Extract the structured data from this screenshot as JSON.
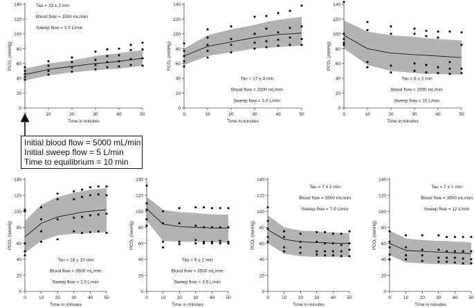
{
  "chart_data": [
    {
      "type": "line",
      "x": [
        0,
        10,
        20,
        30,
        35,
        40,
        45,
        50
      ],
      "median": [
        45,
        52,
        56,
        60,
        61,
        63,
        65,
        67
      ],
      "band_low": [
        37,
        44,
        48,
        51,
        52,
        53,
        55,
        57
      ],
      "band_high": [
        53,
        60,
        64,
        70,
        72,
        74,
        76,
        78
      ],
      "points": [
        [
          0,
          38
        ],
        [
          0,
          42
        ],
        [
          0,
          46
        ],
        [
          0,
          50
        ],
        [
          0,
          55
        ],
        [
          10,
          45
        ],
        [
          10,
          50
        ],
        [
          10,
          57
        ],
        [
          10,
          63
        ],
        [
          20,
          49
        ],
        [
          20,
          55
        ],
        [
          20,
          62
        ],
        [
          20,
          68
        ],
        [
          30,
          52
        ],
        [
          30,
          58
        ],
        [
          30,
          65
        ],
        [
          30,
          76
        ],
        [
          35,
          55
        ],
        [
          35,
          62
        ],
        [
          35,
          70
        ],
        [
          35,
          79
        ],
        [
          40,
          56
        ],
        [
          40,
          63
        ],
        [
          40,
          71
        ],
        [
          40,
          80
        ],
        [
          45,
          58
        ],
        [
          45,
          66
        ],
        [
          45,
          78
        ],
        [
          45,
          85
        ],
        [
          50,
          57
        ],
        [
          50,
          67
        ],
        [
          50,
          79
        ],
        [
          50,
          88
        ]
      ],
      "ylabel": "PCO₂ (mmHg)",
      "xlabel": "Time in minutes",
      "xticks": [
        "0",
        "10",
        "20",
        "30",
        "40",
        "50"
      ],
      "yticks": [
        "0",
        "20",
        "40",
        "60",
        "80",
        "100",
        "120",
        "140"
      ],
      "ylim": [
        0,
        140
      ],
      "xlim": [
        0,
        50
      ],
      "annotations": [
        "Tau =  33 ± 3  min",
        "Blood flow = 1500 mL/min",
        "Sweep flow = 3.0 L/min"
      ],
      "annotation_anchor": "top-left"
    },
    {
      "type": "line",
      "x": [
        0,
        10,
        20,
        30,
        35,
        40,
        45,
        50
      ],
      "median": [
        70,
        83,
        89,
        95,
        97,
        99,
        100,
        101
      ],
      "band_low": [
        58,
        70,
        75,
        80,
        81,
        82,
        83,
        84
      ],
      "band_high": [
        80,
        98,
        106,
        112,
        116,
        119,
        121,
        123
      ],
      "points": [
        [
          0,
          56
        ],
        [
          0,
          63
        ],
        [
          0,
          70
        ],
        [
          0,
          77
        ],
        [
          0,
          87
        ],
        [
          10,
          68
        ],
        [
          10,
          77
        ],
        [
          10,
          85
        ],
        [
          10,
          95
        ],
        [
          10,
          106
        ],
        [
          20,
          75
        ],
        [
          20,
          85
        ],
        [
          20,
          93
        ],
        [
          20,
          110
        ],
        [
          30,
          80
        ],
        [
          30,
          88
        ],
        [
          30,
          100
        ],
        [
          30,
          123
        ],
        [
          35,
          82
        ],
        [
          35,
          90
        ],
        [
          35,
          107
        ],
        [
          35,
          124
        ],
        [
          40,
          84
        ],
        [
          40,
          92
        ],
        [
          40,
          102
        ],
        [
          40,
          128
        ],
        [
          45,
          85
        ],
        [
          45,
          95
        ],
        [
          45,
          108
        ],
        [
          45,
          131
        ],
        [
          50,
          85
        ],
        [
          50,
          93
        ],
        [
          50,
          110
        ],
        [
          50,
          138
        ]
      ],
      "ylabel": "PCO₂ (mmHg)",
      "xlabel": "Time in minutes",
      "xticks": [
        "0",
        "10",
        "20",
        "30",
        "40",
        "50"
      ],
      "yticks": [
        "0",
        "20",
        "40",
        "60",
        "80",
        "100",
        "120",
        "140"
      ],
      "ylim": [
        0,
        140
      ],
      "xlim": [
        0,
        50
      ],
      "annotations": [
        "Tau =  17 ± 4  min",
        "Blood flow = 1500 mL/min",
        "Sweep flow = 3.0 L/min"
      ],
      "annotation_anchor": "bottom-right"
    },
    {
      "type": "line",
      "x": [
        0,
        10,
        20,
        30,
        35,
        40,
        45,
        50
      ],
      "median": [
        98,
        80,
        74,
        72,
        71,
        70,
        69,
        68
      ],
      "band_low": [
        80,
        58,
        50,
        47,
        46,
        46,
        45,
        45
      ],
      "band_high": [
        118,
        103,
        98,
        96,
        94,
        93,
        92,
        91
      ],
      "points": [
        [
          0,
          143
        ],
        [
          0,
          100
        ],
        [
          0,
          93
        ],
        [
          0,
          88
        ],
        [
          0,
          85
        ],
        [
          10,
          116
        ],
        [
          10,
          105
        ],
        [
          10,
          62
        ],
        [
          10,
          55
        ],
        [
          20,
          110
        ],
        [
          20,
          100
        ],
        [
          20,
          57
        ],
        [
          20,
          48
        ],
        [
          30,
          107
        ],
        [
          30,
          100
        ],
        [
          30,
          60
        ],
        [
          30,
          50
        ],
        [
          35,
          104
        ],
        [
          35,
          97
        ],
        [
          35,
          58
        ],
        [
          35,
          48
        ],
        [
          40,
          103
        ],
        [
          40,
          95
        ],
        [
          40,
          55
        ],
        [
          40,
          47
        ],
        [
          45,
          103
        ],
        [
          45,
          62
        ],
        [
          45,
          53
        ],
        [
          45,
          46
        ],
        [
          50,
          102
        ],
        [
          50,
          85
        ],
        [
          50,
          53
        ],
        [
          50,
          47
        ]
      ],
      "ylabel": "PCO₂ (mmHg)",
      "xlabel": "Time in minutes",
      "xticks": [
        "0",
        "10",
        "20",
        "30",
        "40",
        "50"
      ],
      "yticks": [
        "0",
        "20",
        "40",
        "60",
        "80",
        "100",
        "120",
        "140"
      ],
      "ylim": [
        0,
        140
      ],
      "xlim": [
        0,
        50
      ],
      "annotations": [
        "Tau =  8 ± 2  min",
        "Blood flow = 1500 mL/min",
        "Sweep flow = 10 L/min"
      ],
      "annotation_anchor": "bottom-right"
    },
    {
      "type": "line",
      "x": [
        0,
        10,
        20,
        30,
        35,
        40,
        45,
        50
      ],
      "median": [
        68,
        85,
        93,
        97,
        99,
        100,
        101,
        102
      ],
      "band_low": [
        48,
        63,
        70,
        72,
        72,
        73,
        73,
        74
      ],
      "band_high": [
        88,
        108,
        118,
        123,
        125,
        127,
        128,
        129
      ],
      "points": [
        [
          0,
          45
        ],
        [
          0,
          50
        ],
        [
          0,
          60
        ],
        [
          0,
          100
        ],
        [
          0,
          102
        ],
        [
          10,
          62
        ],
        [
          10,
          75
        ],
        [
          10,
          90
        ],
        [
          10,
          105
        ],
        [
          20,
          65
        ],
        [
          20,
          90
        ],
        [
          20,
          115
        ],
        [
          20,
          122
        ],
        [
          30,
          75
        ],
        [
          30,
          92
        ],
        [
          30,
          115
        ],
        [
          30,
          125
        ],
        [
          35,
          73
        ],
        [
          35,
          93
        ],
        [
          35,
          118
        ],
        [
          35,
          127
        ],
        [
          40,
          74
        ],
        [
          40,
          95
        ],
        [
          40,
          120
        ],
        [
          40,
          130
        ],
        [
          45,
          75
        ],
        [
          45,
          96
        ],
        [
          45,
          121
        ],
        [
          45,
          131
        ],
        [
          50,
          73
        ],
        [
          50,
          97
        ],
        [
          50,
          120
        ],
        [
          50,
          131
        ]
      ],
      "ylabel": "PCO₂ (mmHg)",
      "xlabel": "Time in minutes",
      "xticks": [
        "0",
        "10",
        "20",
        "30",
        "40",
        "50"
      ],
      "yticks": [
        "0",
        "20",
        "40",
        "60",
        "80",
        "100",
        "120",
        "140"
      ],
      "ylim": [
        0,
        140
      ],
      "xlim": [
        0,
        50
      ],
      "annotations": [
        "Tau =  18 ± 10  min",
        "Blood flow = 3500 mL/min",
        "Sweep flow = 2.0 L/min"
      ],
      "annotation_anchor": "bottom-right"
    },
    {
      "type": "line",
      "x": [
        0,
        10,
        20,
        30,
        35,
        40,
        45,
        50
      ],
      "median": [
        103,
        84,
        81,
        80,
        80,
        79,
        79,
        79
      ],
      "band_low": [
        88,
        63,
        62,
        62,
        62,
        61,
        61,
        61
      ],
      "band_high": [
        118,
        102,
        99,
        98,
        97,
        96,
        96,
        96
      ],
      "points": [
        [
          0,
          132
        ],
        [
          0,
          110
        ],
        [
          0,
          102
        ],
        [
          0,
          90
        ],
        [
          0,
          82
        ],
        [
          10,
          100
        ],
        [
          10,
          85
        ],
        [
          10,
          62
        ],
        [
          10,
          55
        ],
        [
          20,
          104
        ],
        [
          20,
          85
        ],
        [
          20,
          62
        ],
        [
          20,
          59
        ],
        [
          30,
          105
        ],
        [
          30,
          82
        ],
        [
          30,
          64
        ],
        [
          30,
          60
        ],
        [
          35,
          105
        ],
        [
          35,
          80
        ],
        [
          35,
          62
        ],
        [
          35,
          60
        ],
        [
          40,
          104
        ],
        [
          40,
          80
        ],
        [
          40,
          62
        ],
        [
          40,
          60
        ],
        [
          45,
          104
        ],
        [
          45,
          80
        ],
        [
          45,
          63
        ],
        [
          45,
          60
        ],
        [
          50,
          104
        ],
        [
          50,
          80
        ],
        [
          50,
          62
        ],
        [
          50,
          60
        ]
      ],
      "ylabel": "PCO₂ (mmHg)",
      "xlabel": "Time in minutes",
      "xticks": [
        "0",
        "10",
        "20",
        "30",
        "40",
        "50"
      ],
      "yticks": [
        "0",
        "20",
        "40",
        "60",
        "80",
        "100",
        "120",
        "140"
      ],
      "ylim": [
        0,
        140
      ],
      "xlim": [
        0,
        50
      ],
      "annotations": [
        "Tau =  5 ± 2  min",
        "Blood flow = 3500 mL/min",
        "Sweep flow = 3.5 L/min"
      ],
      "annotation_anchor": "bottom-right"
    },
    {
      "type": "line",
      "x": [
        0,
        10,
        20,
        30,
        35,
        40,
        45,
        50
      ],
      "median": [
        77,
        65,
        62,
        61,
        61,
        60,
        60,
        60
      ],
      "band_low": [
        60,
        47,
        44,
        43,
        43,
        43,
        43,
        43
      ],
      "band_high": [
        95,
        80,
        76,
        75,
        74,
        74,
        73,
        73
      ],
      "points": [
        [
          0,
          105
        ],
        [
          0,
          88
        ],
        [
          0,
          78
        ],
        [
          0,
          68
        ],
        [
          0,
          62
        ],
        [
          10,
          75
        ],
        [
          10,
          68
        ],
        [
          10,
          55
        ],
        [
          10,
          50
        ],
        [
          20,
          72
        ],
        [
          20,
          62
        ],
        [
          20,
          55
        ],
        [
          20,
          48
        ],
        [
          30,
          74
        ],
        [
          30,
          62
        ],
        [
          30,
          50
        ],
        [
          30,
          46
        ],
        [
          35,
          74
        ],
        [
          35,
          60
        ],
        [
          35,
          50
        ],
        [
          35,
          45
        ],
        [
          40,
          72
        ],
        [
          40,
          60
        ],
        [
          40,
          50
        ],
        [
          40,
          45
        ],
        [
          45,
          72
        ],
        [
          45,
          58
        ],
        [
          45,
          50
        ],
        [
          45,
          44
        ],
        [
          50,
          75
        ],
        [
          50,
          60
        ],
        [
          50,
          52
        ],
        [
          50,
          44
        ]
      ],
      "ylabel": "PCO₂ (mmHg)",
      "xlabel": "Time in minutes",
      "xticks": [
        "0",
        "10",
        "20",
        "30",
        "40",
        "50"
      ],
      "yticks": [
        "0",
        "20",
        "40",
        "60",
        "80",
        "100",
        "120",
        "140"
      ],
      "ylim": [
        0,
        140
      ],
      "xlim": [
        0,
        50
      ],
      "annotations": [
        "Tau =  7 ± 2  min",
        "Blood flow = 3500 mL/min",
        "Sweep flow = 7.0 L/min"
      ],
      "annotation_anchor": "top-right"
    },
    {
      "type": "line",
      "x": [
        0,
        10,
        20,
        30,
        35,
        40,
        45,
        50
      ],
      "median": [
        60,
        51,
        50,
        49,
        49,
        48,
        48,
        47
      ],
      "band_low": [
        45,
        36,
        35,
        34,
        34,
        34,
        33,
        33
      ],
      "band_high": [
        76,
        66,
        64,
        63,
        63,
        62,
        62,
        61
      ],
      "points": [
        [
          0,
          75
        ],
        [
          0,
          62
        ],
        [
          0,
          55
        ],
        [
          0,
          46
        ],
        [
          0,
          40
        ],
        [
          10,
          70
        ],
        [
          10,
          55
        ],
        [
          10,
          45
        ],
        [
          10,
          40
        ],
        [
          20,
          70
        ],
        [
          20,
          52
        ],
        [
          20,
          45
        ],
        [
          20,
          38
        ],
        [
          30,
          70
        ],
        [
          30,
          52
        ],
        [
          30,
          42
        ],
        [
          30,
          37
        ],
        [
          35,
          68
        ],
        [
          35,
          50
        ],
        [
          35,
          42
        ],
        [
          35,
          37
        ],
        [
          40,
          68
        ],
        [
          40,
          50
        ],
        [
          40,
          42
        ],
        [
          40,
          36
        ],
        [
          45,
          68
        ],
        [
          45,
          50
        ],
        [
          45,
          41
        ],
        [
          45,
          35
        ],
        [
          50,
          68
        ],
        [
          50,
          50
        ],
        [
          50,
          40
        ],
        [
          50,
          35
        ]
      ],
      "ylabel": "PCO₂ (mmHg)",
      "xlabel": "Time in minutes",
      "xticks": [
        "0",
        "10",
        "20",
        "30",
        "40",
        "50"
      ],
      "yticks": [
        "0",
        "20",
        "40",
        "60",
        "80",
        "100",
        "120",
        "140"
      ],
      "ylim": [
        0,
        140
      ],
      "xlim": [
        0,
        50
      ],
      "annotations": [
        "Tau =  7 ± 1  min",
        "Blood flow = 3500 mL/min",
        "Sweep flow = 12 L/min"
      ],
      "annotation_anchor": "top-right"
    }
  ],
  "callout": {
    "line1": "Initial blood flow = 5000 mL/min",
    "line2": "Initial sweep flow = 5 L/min",
    "line3": "Time to equilibrium = 10 min"
  }
}
